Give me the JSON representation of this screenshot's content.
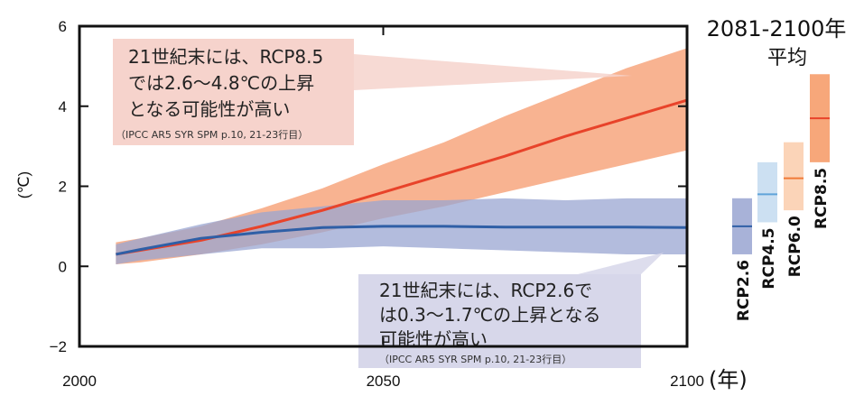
{
  "chart_data": {
    "type": "line",
    "title": "",
    "xlabel": "(年)",
    "ylabel": "(℃)",
    "xlim": [
      2000,
      2100
    ],
    "ylim": [
      -2,
      6
    ],
    "x_ticks": [
      "2000",
      "2050",
      "2100"
    ],
    "y_ticks": [
      "−2",
      "0",
      "2",
      "4",
      "6"
    ],
    "x_tick_values": [
      2000,
      2050,
      2100
    ],
    "y_tick_values": [
      -2,
      0,
      2,
      4,
      6
    ],
    "series": [
      {
        "name": "RCP8.5",
        "color": "#e8432a",
        "band_color": "#f7ab85",
        "x": [
          2006,
          2010,
          2020,
          2030,
          2040,
          2050,
          2060,
          2070,
          2080,
          2090,
          2100
        ],
        "y": [
          0.3,
          0.4,
          0.65,
          1.0,
          1.4,
          1.85,
          2.3,
          2.75,
          3.25,
          3.7,
          4.15
        ],
        "lower": [
          0.05,
          0.1,
          0.3,
          0.55,
          0.85,
          1.2,
          1.5,
          1.85,
          2.2,
          2.55,
          2.9
        ],
        "upper": [
          0.6,
          0.7,
          1.0,
          1.45,
          1.95,
          2.55,
          3.1,
          3.75,
          4.35,
          4.95,
          5.45
        ]
      },
      {
        "name": "RCP2.6",
        "color": "#2f5fa6",
        "band_color": "#9aa6d2",
        "x": [
          2006,
          2010,
          2020,
          2030,
          2040,
          2050,
          2060,
          2070,
          2080,
          2090,
          2100
        ],
        "y": [
          0.3,
          0.42,
          0.7,
          0.85,
          0.97,
          1.0,
          1.0,
          0.98,
          0.98,
          0.98,
          0.97
        ],
        "lower": [
          0.05,
          0.15,
          0.3,
          0.45,
          0.45,
          0.5,
          0.45,
          0.4,
          0.35,
          0.3,
          0.3
        ],
        "upper": [
          0.55,
          0.7,
          1.05,
          1.35,
          1.5,
          1.65,
          1.65,
          1.7,
          1.65,
          1.7,
          1.7
        ]
      }
    ],
    "period_bars": {
      "title": "2081-2100年",
      "subtitle": "平均",
      "bars": [
        {
          "name": "RCP2.6",
          "low": 0.3,
          "high": 1.7,
          "mean": 1.0,
          "color": "#a8b2d8",
          "line_color": "#2f5fa6"
        },
        {
          "name": "RCP4.5",
          "low": 1.1,
          "high": 2.6,
          "mean": 1.8,
          "color": "#cce0f2",
          "line_color": "#5fa3d9"
        },
        {
          "name": "RCP6.0",
          "low": 1.4,
          "high": 3.1,
          "mean": 2.2,
          "color": "#fbd4b8",
          "line_color": "#f07a38"
        },
        {
          "name": "RCP8.5",
          "low": 2.6,
          "high": 4.8,
          "mean": 3.7,
          "color": "#f7a77a",
          "line_color": "#e8432a"
        }
      ]
    },
    "annotations": [
      {
        "name": "rcp85-note",
        "lines": [
          "21世紀末には、RCP8.5",
          "では2.6〜4.8℃の上昇",
          "となる可能性が高い"
        ],
        "ref": "（IPCC AR5 SYR SPM p.10, 21-23行目）",
        "bg": "#f6d3cc"
      },
      {
        "name": "rcp26-note",
        "lines": [
          "21世紀末には、RCP2.6で",
          "は0.3〜1.7℃の上昇となる",
          "可能性が高い"
        ],
        "ref": "（IPCC AR5 SYR SPM p.10, 21-23行目）",
        "bg": "#d7d7ea"
      }
    ]
  }
}
